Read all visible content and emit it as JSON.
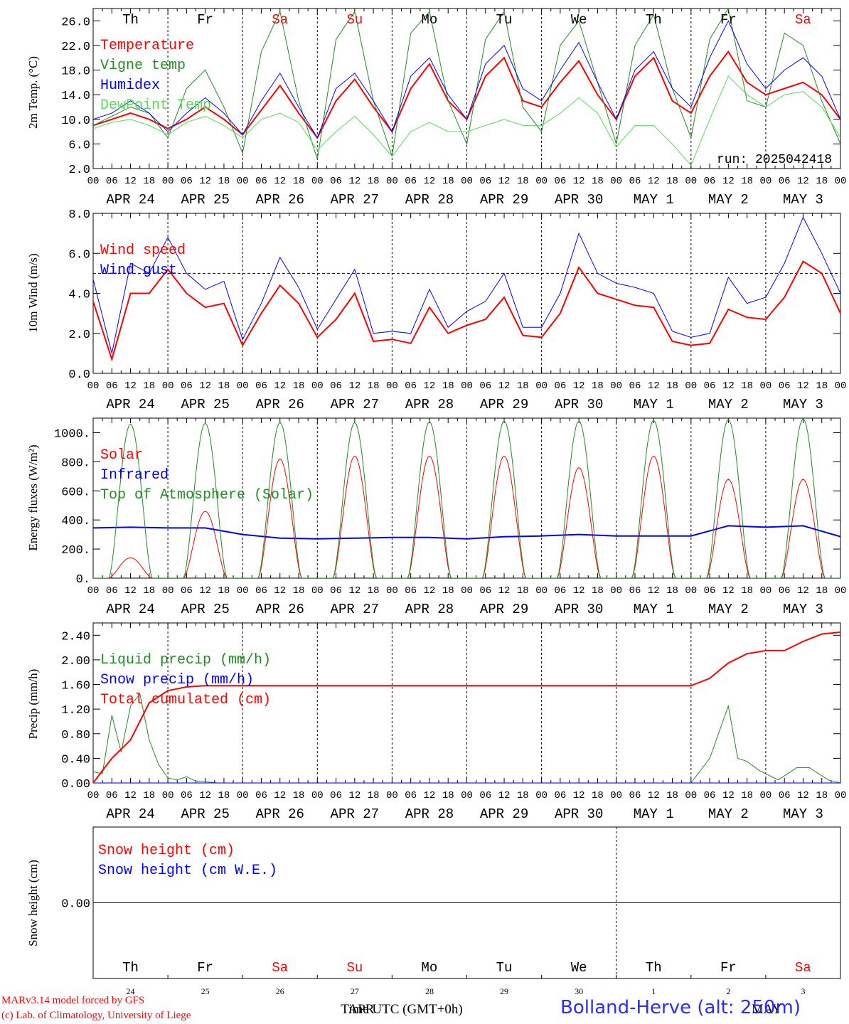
{
  "run_label": "run: 2025042418",
  "footer": {
    "model": "MARv3.14 model forced by GFS",
    "lab": "(c) Lab. of Climatology, University of Liege",
    "xlabel": "Time UTC (GMT+0h)",
    "station": "Bolland-Herve (alt: 250m)"
  },
  "day_names": [
    "Th",
    "Fr",
    "Sa",
    "Su",
    "Mo",
    "Tu",
    "We",
    "Th",
    "Fr",
    "Sa"
  ],
  "date_labels": [
    "APR 24",
    "APR 25",
    "APR 26",
    "APR 27",
    "APR 28",
    "APR 29",
    "APR 30",
    "MAY  1",
    "MAY  2",
    "MAY  3"
  ],
  "bottom_day_numbers": [
    "24",
    "25",
    "26",
    "27",
    "28",
    "29",
    "30",
    "1",
    "2",
    "3"
  ],
  "bottom_month_labels": [
    "APR",
    "MAY"
  ],
  "hour_ticks": [
    "00",
    "06",
    "12",
    "18"
  ],
  "colors": {
    "weekend": "#ff0000",
    "weekday": "#000000"
  },
  "chart_data": [
    {
      "type": "line",
      "ylabel": "2m Temp. (°C)",
      "ylim": [
        2,
        28
      ],
      "yticks": [
        "2.0",
        "6.0",
        "10.0",
        "14.0",
        "18.0",
        "22.0",
        "26.0"
      ],
      "x_hours": [
        0,
        6,
        12,
        18,
        24,
        30,
        36,
        42,
        48,
        54,
        60,
        66,
        72,
        78,
        84,
        90,
        96,
        102,
        108,
        114,
        120,
        126,
        132,
        138,
        144,
        150,
        156,
        162,
        168,
        174,
        180,
        186,
        192,
        198,
        204,
        210,
        216,
        222,
        228,
        234,
        240
      ],
      "series": [
        {
          "name": "Temperature",
          "color": "#ff0000",
          "width": 2,
          "values": [
            9,
            10,
            11,
            10,
            8.5,
            10,
            12,
            10,
            7.5,
            11.5,
            15.5,
            11,
            7,
            13,
            16.5,
            12,
            8,
            15,
            19,
            13,
            10,
            17,
            20,
            13,
            12,
            16,
            19.5,
            14,
            10,
            17,
            20,
            13,
            11,
            17,
            21,
            16,
            14,
            15,
            16,
            14,
            10
          ]
        },
        {
          "name": "Vigne temp",
          "color": "#228b22",
          "width": 1,
          "values": [
            9,
            10.5,
            12,
            11,
            7,
            15,
            18,
            12,
            4.5,
            21,
            27.5,
            13,
            3.5,
            23,
            27.5,
            13,
            4,
            24,
            27.5,
            13,
            6,
            23,
            27.5,
            12,
            8,
            22,
            26,
            16,
            6,
            22,
            27,
            15,
            7,
            23,
            28,
            13,
            12,
            24,
            22,
            13,
            6
          ]
        },
        {
          "name": "Humidex",
          "color": "#0000ff",
          "width": 1,
          "values": [
            10,
            11,
            13,
            11,
            8,
            11,
            13.5,
            11,
            7.5,
            13,
            17.5,
            12,
            7,
            15,
            17.5,
            13,
            8,
            17,
            20,
            14,
            10,
            19,
            22,
            15,
            13,
            18,
            22.5,
            16,
            10,
            18,
            21,
            15,
            12,
            20,
            26,
            19,
            15,
            18,
            20,
            17,
            10
          ]
        },
        {
          "name": "DewPoint Temp",
          "color": "#55dd55",
          "width": 1,
          "values": [
            8.5,
            9.5,
            10,
            9,
            7.5,
            9.5,
            10.5,
            9,
            7,
            10,
            11,
            9.5,
            5,
            8,
            10.5,
            7.5,
            4,
            8,
            9.5,
            8,
            8,
            9,
            10,
            9,
            9,
            11,
            13.5,
            11,
            5.5,
            9,
            9,
            6,
            2.5,
            10,
            17,
            14,
            12,
            14,
            14.5,
            12,
            7
          ]
        }
      ]
    },
    {
      "type": "line",
      "ylabel": "10m Wind (m/s)",
      "ylim": [
        0,
        8
      ],
      "yticks": [
        "0.0",
        "2.0",
        "4.0",
        "6.0",
        "8.0"
      ],
      "x_hours": [
        0,
        6,
        12,
        18,
        24,
        30,
        36,
        42,
        48,
        54,
        60,
        66,
        72,
        78,
        84,
        90,
        96,
        102,
        108,
        114,
        120,
        126,
        132,
        138,
        144,
        150,
        156,
        162,
        168,
        174,
        180,
        186,
        192,
        198,
        204,
        210,
        216,
        222,
        228,
        234,
        240
      ],
      "series": [
        {
          "name": "Wind speed",
          "color": "#ff0000",
          "width": 2,
          "values": [
            3.6,
            0.7,
            4,
            4,
            5.2,
            4,
            3.3,
            3.5,
            1.4,
            3,
            4.4,
            3.5,
            1.8,
            2.7,
            4,
            1.6,
            1.7,
            1.5,
            3.3,
            2,
            2.4,
            2.7,
            3.8,
            1.9,
            1.8,
            3,
            5.3,
            4,
            3.7,
            3.4,
            3.3,
            1.6,
            1.4,
            1.5,
            3.2,
            2.8,
            2.7,
            3.8,
            5.6,
            5,
            3
          ]
        },
        {
          "name": "Wind gust",
          "color": "#0000ff",
          "width": 1,
          "values": [
            4.7,
            1,
            5.5,
            5,
            6.8,
            5,
            4.2,
            4.6,
            1.7,
            3.5,
            5.8,
            4.3,
            2.2,
            3.7,
            5.2,
            2,
            2.1,
            2,
            4.2,
            2.3,
            3.1,
            3.6,
            5,
            2.3,
            2.3,
            4,
            7,
            5,
            4.5,
            4.3,
            4,
            2.1,
            1.8,
            2,
            4.8,
            3.5,
            3.8,
            5.5,
            7.8,
            6,
            4
          ]
        }
      ],
      "reference_line": 5
    },
    {
      "type": "line",
      "ylabel": "Energy fluxes (W/m²)",
      "ylim": [
        0,
        1100
      ],
      "yticks": [
        "0.",
        "200.",
        "400.",
        "600.",
        "800.",
        "1000."
      ],
      "series": [
        {
          "name": "Solar",
          "color": "#ff0000",
          "width": 1,
          "daily_peaks": [
            140,
            460,
            820,
            840,
            840,
            840,
            760,
            840,
            680,
            680
          ]
        },
        {
          "name": "Infrared",
          "color": "#0000ff",
          "width": 2,
          "x_hours": [
            0,
            12,
            24,
            36,
            48,
            60,
            72,
            84,
            96,
            108,
            120,
            132,
            144,
            156,
            168,
            180,
            192,
            204,
            216,
            228,
            240
          ],
          "values": [
            345,
            350,
            345,
            345,
            300,
            275,
            270,
            275,
            280,
            280,
            270,
            285,
            290,
            300,
            290,
            290,
            290,
            360,
            350,
            360,
            285
          ]
        },
        {
          "name": "Top of Atmosphere (Solar)",
          "color": "#228b22",
          "width": 1,
          "daily_peaks": [
            1060,
            1065,
            1070,
            1070,
            1075,
            1080,
            1080,
            1085,
            1090,
            1095
          ]
        }
      ]
    },
    {
      "type": "line",
      "ylabel": "Precip (mm/h)",
      "ylim": [
        0,
        2.6
      ],
      "yticks": [
        "0.00",
        "0.40",
        "0.80",
        "1.20",
        "1.60",
        "2.00",
        "2.40"
      ],
      "series": [
        {
          "name": "Liquid precip (mm/h)",
          "color": "#228b22",
          "width": 1,
          "x_hours": [
            0,
            3,
            6,
            9,
            12,
            15,
            18,
            21,
            24,
            27,
            30,
            33,
            36,
            40,
            48,
            60,
            192,
            198,
            204,
            207,
            210,
            214,
            220,
            226,
            230,
            236,
            240
          ],
          "values": [
            0.18,
            0.15,
            1.1,
            0.5,
            1.25,
            1.45,
            0.7,
            0.3,
            0.08,
            0.05,
            0.1,
            0.03,
            0.02,
            0,
            0,
            0,
            0,
            0.4,
            1.25,
            0.4,
            0.35,
            0.2,
            0.05,
            0.25,
            0.25,
            0.05,
            0
          ]
        },
        {
          "name": "Snow precip (mm/h)",
          "color": "#0000ff",
          "width": 1,
          "x_hours": [
            0,
            240
          ],
          "values": [
            0,
            0
          ]
        },
        {
          "name": "Total cumulated (cm)",
          "color": "#ff0000",
          "width": 2,
          "x_hours": [
            0,
            6,
            12,
            18,
            24,
            30,
            36,
            48,
            192,
            198,
            204,
            210,
            216,
            222,
            228,
            234,
            240
          ],
          "values": [
            0,
            0.4,
            0.7,
            1.3,
            1.5,
            1.56,
            1.58,
            1.58,
            1.58,
            1.7,
            1.95,
            2.1,
            2.15,
            2.15,
            2.3,
            2.42,
            2.45
          ]
        }
      ]
    },
    {
      "type": "line",
      "ylabel": "Snow height (cm)",
      "ylim": [
        -1,
        1
      ],
      "yticks": [
        "0.00"
      ],
      "series": [
        {
          "name": "Snow height (cm)",
          "color": "#ff0000",
          "width": 1,
          "x_hours": [
            0,
            240
          ],
          "values": [
            0,
            0
          ]
        },
        {
          "name": "Snow height (cm W.E.)",
          "color": "#0000ff",
          "width": 1,
          "x_hours": [
            0,
            240
          ],
          "values": [
            0,
            0
          ]
        }
      ]
    }
  ]
}
